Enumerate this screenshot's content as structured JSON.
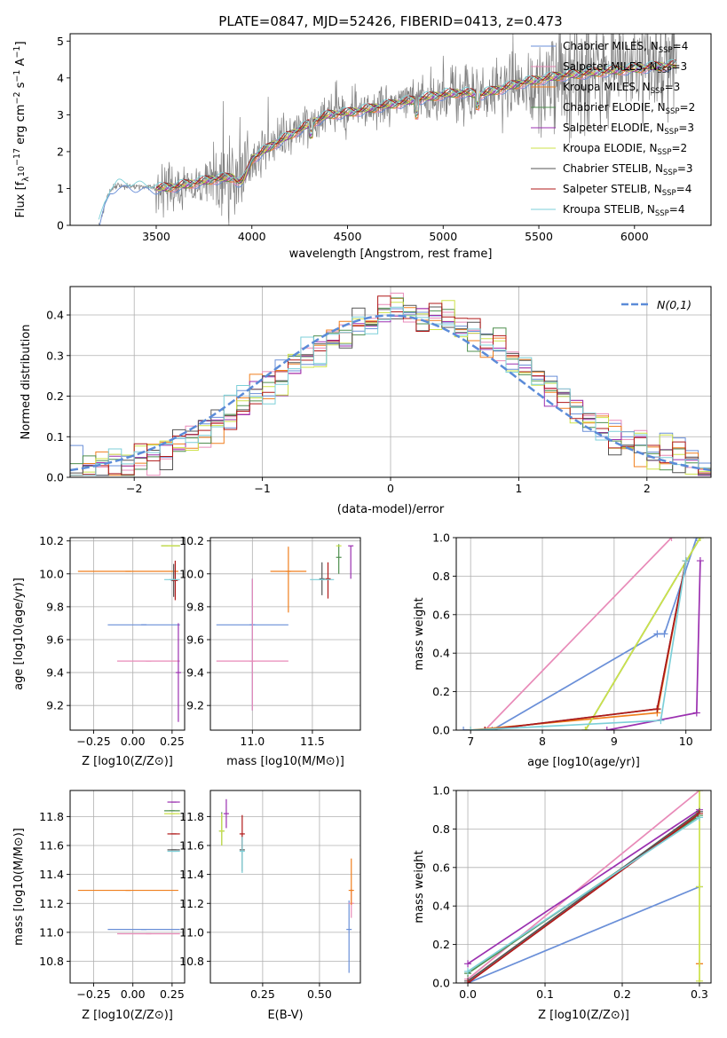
{
  "figure": {
    "title": "PLATE=0847, MJD=52426, FIBERID=0413, z=0.473"
  },
  "series_styles": [
    {
      "name": "Chabrier MILES",
      "color": "#6a8fd8"
    },
    {
      "name": "Salpeter MILES",
      "color": "#e88ab8"
    },
    {
      "name": "Kroupa MILES",
      "color": "#f07f1e"
    },
    {
      "name": "Chabrier ELODIE",
      "color": "#4f8f4f"
    },
    {
      "name": "Salpeter ELODIE",
      "color": "#9b30b0"
    },
    {
      "name": "Kroupa ELODIE",
      "color": "#cde24a"
    },
    {
      "name": "Chabrier STELIB",
      "color": "#555555"
    },
    {
      "name": "Salpeter STELIB",
      "color": "#b01818"
    },
    {
      "name": "Kroupa STELIB",
      "color": "#7ccfd8"
    }
  ],
  "chart_data": [
    {
      "id": "spectrum",
      "type": "line",
      "title": "PLATE=0847, MJD=52426, FIBERID=0413, z=0.473",
      "xlabel": "wavelength [Angstrom, rest frame]",
      "ylabel": "Flux [f_λ 10^-17 erg cm^-2 s^-1 A^-1]",
      "xlim": [
        3050,
        6400
      ],
      "ylim": [
        0,
        5.2
      ],
      "xticks": [
        3500,
        4000,
        4500,
        5000,
        5500,
        6000
      ],
      "yticks": [
        0,
        1,
        2,
        3,
        4,
        5
      ],
      "legend": {
        "placement": "top-right",
        "entries": [
          {
            "name": "Chabrier MILES",
            "nssp": "4",
            "color": "#6a8fd8"
          },
          {
            "name": "Salpeter MILES",
            "nssp": "3",
            "color": "#e88ab8"
          },
          {
            "name": "Kroupa MILES",
            "nssp": "3",
            "color": "#f07f1e"
          },
          {
            "name": "Chabrier ELODIE",
            "nssp": "2",
            "color": "#4f8f4f"
          },
          {
            "name": "Salpeter ELODIE",
            "nssp": "3",
            "color": "#9b30b0"
          },
          {
            "name": "Kroupa ELODIE",
            "nssp": "2",
            "color": "#cde24a"
          },
          {
            "name": "Chabrier STELIB",
            "nssp": "3",
            "color": "#555555"
          },
          {
            "name": "Salpeter STELIB",
            "nssp": "4",
            "color": "#b01818"
          },
          {
            "name": "Kroupa STELIB",
            "nssp": "4",
            "color": "#7ccfd8"
          }
        ]
      },
      "data_color": "#808080",
      "data_range": [
        3200,
        6220
      ],
      "model_continuum": {
        "x": [
          3200,
          3230,
          3260,
          3300,
          3400,
          3500,
          3600,
          3700,
          3800,
          3900,
          3950,
          4000,
          4100,
          4200,
          4300,
          4400,
          4500,
          4600,
          4700,
          4800,
          4900,
          5000,
          5100,
          5200,
          5300,
          5400,
          5500,
          5600,
          5700,
          5800,
          5900,
          6000,
          6100,
          6220
        ],
        "y": [
          0.0,
          0.55,
          0.95,
          1.1,
          1.05,
          1.0,
          1.05,
          1.15,
          1.25,
          1.3,
          1.45,
          1.8,
          2.15,
          2.45,
          2.75,
          3.0,
          3.05,
          3.15,
          3.25,
          3.35,
          3.45,
          3.55,
          3.6,
          3.55,
          3.7,
          3.85,
          3.95,
          4.05,
          4.1,
          4.15,
          4.2,
          4.25,
          4.3,
          4.35
        ]
      }
    },
    {
      "id": "residuals",
      "type": "histogram",
      "xlabel": "(data-model)/error",
      "ylabel": "Normed distribution",
      "xlim": [
        -2.5,
        2.5
      ],
      "ylim": [
        0,
        0.47
      ],
      "xticks": [
        -2,
        -1,
        0,
        1,
        2
      ],
      "yticks": [
        0.0,
        0.1,
        0.2,
        0.3,
        0.4
      ],
      "grid": true,
      "legend": {
        "placement": "top-right",
        "label": "N(0,1)"
      },
      "reference": {
        "name": "N(0,1)",
        "mean": 0,
        "sigma": 1,
        "color": "#5b8bd8"
      },
      "bin_width": 0.1
    },
    {
      "id": "age-vs-Z",
      "type": "errorbar",
      "xlabel": "Z [log10(Z/Z⊙)]",
      "ylabel": "age [log10(age/yr)]",
      "xlim": [
        -0.4,
        0.33
      ],
      "ylim": [
        9.05,
        10.22
      ],
      "xticks": [
        -0.25,
        0.0,
        0.25
      ],
      "yticks": [
        9.2,
        9.4,
        9.6,
        9.8,
        10.0,
        10.2
      ],
      "grid": true,
      "points": [
        {
          "series": "Chabrier MILES",
          "x": 0.07,
          "xerr": [
            0.23,
            0.23
          ],
          "y": 9.69,
          "yerr": [
            0.0,
            0.0
          ]
        },
        {
          "series": "Salpeter MILES",
          "x": 0.1,
          "xerr": [
            0.2,
            0.2
          ],
          "y": 9.47,
          "yerr": [
            0.0,
            0.0
          ]
        },
        {
          "series": "Kroupa MILES",
          "x": -0.03,
          "xerr": [
            0.32,
            0.32
          ],
          "y": 10.015,
          "yerr": [
            0.0,
            0.0
          ]
        },
        {
          "series": "Chabrier ELODIE",
          "x": 0.24,
          "xerr": [
            0.06,
            0.06
          ],
          "y": 10.17,
          "yerr": [
            0.0,
            0.0
          ]
        },
        {
          "series": "Salpeter ELODIE",
          "x": 0.29,
          "xerr": [
            0.0,
            0.0
          ],
          "y": 9.4,
          "yerr": [
            0.3,
            0.3
          ]
        },
        {
          "series": "Kroupa ELODIE",
          "x": 0.24,
          "xerr": [
            0.06,
            0.06
          ],
          "y": 10.17,
          "yerr": [
            0.0,
            0.0
          ]
        },
        {
          "series": "Chabrier STELIB",
          "x": 0.26,
          "xerr": [
            0.0,
            0.0
          ],
          "y": 9.96,
          "yerr": [
            0.1,
            0.1
          ]
        },
        {
          "series": "Salpeter STELIB",
          "x": 0.27,
          "xerr": [
            0.0,
            0.0
          ],
          "y": 9.96,
          "yerr": [
            0.12,
            0.12
          ]
        },
        {
          "series": "Kroupa STELIB",
          "x": 0.25,
          "xerr": [
            0.05,
            0.05
          ],
          "y": 9.965,
          "yerr": [
            0.0,
            0.0
          ]
        }
      ]
    },
    {
      "id": "age-vs-mass",
      "type": "errorbar",
      "xlabel": "mass [log10(M/M⊙)]",
      "ylabel": "",
      "xlim": [
        10.65,
        11.9
      ],
      "ylim": [
        9.05,
        10.22
      ],
      "xticks": [
        11.0,
        11.5
      ],
      "yticks": [
        9.2,
        9.4,
        9.6,
        9.8,
        10.0,
        10.2
      ],
      "grid": true,
      "points": [
        {
          "series": "Chabrier MILES",
          "x": 11.0,
          "xerr": [
            0.3,
            0.3
          ],
          "y": 9.69,
          "yerr": [
            0.52,
            0.28
          ]
        },
        {
          "series": "Salpeter MILES",
          "x": 11.0,
          "xerr": [
            0.3,
            0.3
          ],
          "y": 9.47,
          "yerr": [
            0.3,
            0.5
          ]
        },
        {
          "series": "Kroupa MILES",
          "x": 11.3,
          "xerr": [
            0.15,
            0.15
          ],
          "y": 10.015,
          "yerr": [
            0.25,
            0.15
          ]
        },
        {
          "series": "Chabrier ELODIE",
          "x": 11.72,
          "xerr": [
            0.0,
            0.0
          ],
          "y": 10.1,
          "yerr": [
            0.1,
            0.08
          ]
        },
        {
          "series": "Salpeter ELODIE",
          "x": 11.82,
          "xerr": [
            0.0,
            0.0
          ],
          "y": 10.17,
          "yerr": [
            0.2,
            0.0
          ]
        },
        {
          "series": "Kroupa ELODIE",
          "x": 11.72,
          "xerr": [
            0.0,
            0.0
          ],
          "y": 10.17,
          "yerr": [
            0.0,
            0.0
          ]
        },
        {
          "series": "Chabrier STELIB",
          "x": 11.58,
          "xerr": [
            0.0,
            0.0
          ],
          "y": 9.97,
          "yerr": [
            0.1,
            0.1
          ]
        },
        {
          "series": "Salpeter STELIB",
          "x": 11.63,
          "xerr": [
            0.0,
            0.0
          ],
          "y": 9.97,
          "yerr": [
            0.12,
            0.1
          ]
        },
        {
          "series": "Kroupa STELIB",
          "x": 11.58,
          "xerr": [
            0.1,
            0.1
          ],
          "y": 9.965,
          "yerr": [
            0.0,
            0.0
          ]
        }
      ]
    },
    {
      "id": "weight-vs-age",
      "type": "line",
      "xlabel": "age [log10(age/yr)]",
      "ylabel": "mass weight",
      "xlim": [
        6.8,
        10.35
      ],
      "ylim": [
        0,
        1.0
      ],
      "xticks": [
        7,
        8,
        9,
        10
      ],
      "yticks": [
        0.0,
        0.2,
        0.4,
        0.6,
        0.8,
        1.0
      ],
      "grid": true,
      "series": [
        {
          "name": "Chabrier MILES",
          "x": [
            6.9,
            7.3,
            9.6,
            9.7,
            10.15
          ],
          "y": [
            0.0,
            0.0,
            0.5,
            0.5,
            1.0
          ]
        },
        {
          "name": "Salpeter MILES",
          "x": [
            7.2,
            9.8
          ],
          "y": [
            0.0,
            1.0
          ]
        },
        {
          "name": "Kroupa MILES",
          "x": [
            7.0,
            9.6,
            10.0
          ],
          "y": [
            0.0,
            0.09,
            0.88
          ]
        },
        {
          "name": "Chabrier ELODIE",
          "x": [
            8.6,
            10.2
          ],
          "y": [
            0.0,
            1.0
          ]
        },
        {
          "name": "Salpeter ELODIE",
          "x": [
            8.9,
            10.15,
            10.2
          ],
          "y": [
            0.0,
            0.09,
            0.88
          ]
        },
        {
          "name": "Kroupa ELODIE",
          "x": [
            8.6,
            10.2
          ],
          "y": [
            0.0,
            1.0
          ]
        },
        {
          "name": "Chabrier STELIB",
          "x": [
            7.2,
            9.6,
            10.0
          ],
          "y": [
            0.0,
            0.11,
            0.88
          ]
        },
        {
          "name": "Salpeter STELIB",
          "x": [
            7.2,
            9.6,
            10.0
          ],
          "y": [
            0.0,
            0.11,
            0.88
          ]
        },
        {
          "name": "Kroupa STELIB",
          "x": [
            7.0,
            9.65,
            10.0
          ],
          "y": [
            0.0,
            0.05,
            0.88
          ]
        }
      ]
    },
    {
      "id": "mass-vs-Z",
      "type": "errorbar",
      "xlabel": "Z [log10(Z/Z⊙)]",
      "ylabel": "mass [log10(M/M⊙)]",
      "xlim": [
        -0.4,
        0.33
      ],
      "ylim": [
        10.65,
        11.98
      ],
      "xticks": [
        -0.25,
        0.0,
        0.25
      ],
      "yticks": [
        10.8,
        11.0,
        11.2,
        11.4,
        11.6,
        11.8
      ],
      "grid": true,
      "points": [
        {
          "series": "Chabrier MILES",
          "x": 0.07,
          "xerr": [
            0.23,
            0.23
          ],
          "y": 11.02,
          "yerr": [
            0.0,
            0.0
          ]
        },
        {
          "series": "Salpeter MILES",
          "x": 0.1,
          "xerr": [
            0.2,
            0.2
          ],
          "y": 10.99,
          "yerr": [
            0.0,
            0.0
          ]
        },
        {
          "series": "Kroupa MILES",
          "x": -0.03,
          "xerr": [
            0.32,
            0.32
          ],
          "y": 11.29,
          "yerr": [
            0.0,
            0.0
          ]
        },
        {
          "series": "Chabrier ELODIE",
          "x": 0.25,
          "xerr": [
            0.05,
            0.05
          ],
          "y": 11.84,
          "yerr": [
            0.0,
            0.0
          ]
        },
        {
          "series": "Salpeter ELODIE",
          "x": 0.26,
          "xerr": [
            0.04,
            0.04
          ],
          "y": 11.9,
          "yerr": [
            0.0,
            0.0
          ]
        },
        {
          "series": "Kroupa ELODIE",
          "x": 0.25,
          "xerr": [
            0.05,
            0.05
          ],
          "y": 11.82,
          "yerr": [
            0.0,
            0.0
          ]
        },
        {
          "series": "Chabrier STELIB",
          "x": 0.26,
          "xerr": [
            0.04,
            0.04
          ],
          "y": 11.57,
          "yerr": [
            0.0,
            0.0
          ]
        },
        {
          "series": "Salpeter STELIB",
          "x": 0.26,
          "xerr": [
            0.04,
            0.04
          ],
          "y": 11.68,
          "yerr": [
            0.0,
            0.0
          ]
        },
        {
          "series": "Kroupa STELIB",
          "x": 0.26,
          "xerr": [
            0.04,
            0.04
          ],
          "y": 11.56,
          "yerr": [
            0.0,
            0.0
          ]
        }
      ]
    },
    {
      "id": "mass-vs-EBV",
      "type": "errorbar",
      "xlabel": "E(B-V)",
      "ylabel": "",
      "xlim": [
        0.02,
        0.68
      ],
      "ylim": [
        10.65,
        11.98
      ],
      "xticks": [
        0.25,
        0.5
      ],
      "yticks": [
        10.8,
        11.0,
        11.2,
        11.4,
        11.6,
        11.8
      ],
      "grid": true,
      "points": [
        {
          "series": "Chabrier MILES",
          "x": 0.63,
          "xerr": [
            0.0,
            0.0
          ],
          "y": 11.02,
          "yerr": [
            0.3,
            0.2
          ]
        },
        {
          "series": "Salpeter MILES",
          "x": 0.64,
          "xerr": [
            0.0,
            0.0
          ],
          "y": 11.2,
          "yerr": [
            0.1,
            0.1
          ]
        },
        {
          "series": "Kroupa MILES",
          "x": 0.64,
          "xerr": [
            0.0,
            0.0
          ],
          "y": 11.29,
          "yerr": [
            0.1,
            0.22
          ]
        },
        {
          "series": "Chabrier ELODIE",
          "x": 0.07,
          "xerr": [
            0.0,
            0.0
          ],
          "y": 11.7,
          "yerr": [
            0.1,
            0.13
          ]
        },
        {
          "series": "Salpeter ELODIE",
          "x": 0.09,
          "xerr": [
            0.0,
            0.0
          ],
          "y": 11.82,
          "yerr": [
            0.1,
            0.1
          ]
        },
        {
          "series": "Kroupa ELODIE",
          "x": 0.07,
          "xerr": [
            0.0,
            0.0
          ],
          "y": 11.7,
          "yerr": [
            0.1,
            0.12
          ]
        },
        {
          "series": "Chabrier STELIB",
          "x": 0.16,
          "xerr": [
            0.0,
            0.0
          ],
          "y": 11.57,
          "yerr": [
            0.15,
            0.1
          ]
        },
        {
          "series": "Salpeter STELIB",
          "x": 0.16,
          "xerr": [
            0.0,
            0.0
          ],
          "y": 11.68,
          "yerr": [
            0.1,
            0.13
          ]
        },
        {
          "series": "Kroupa STELIB",
          "x": 0.16,
          "xerr": [
            0.0,
            0.0
          ],
          "y": 11.56,
          "yerr": [
            0.15,
            0.1
          ]
        }
      ]
    },
    {
      "id": "weight-vs-Z",
      "type": "line",
      "xlabel": "Z [log10(Z/Z⊙)]",
      "ylabel": "mass weight",
      "xlim": [
        -0.015,
        0.315
      ],
      "ylim": [
        0,
        1.0
      ],
      "xticks": [
        0.0,
        0.1,
        0.2,
        0.3
      ],
      "yticks": [
        0.0,
        0.2,
        0.4,
        0.6,
        0.8,
        1.0
      ],
      "grid": true,
      "series": [
        {
          "name": "Chabrier MILES",
          "x": [
            0.0,
            0.3
          ],
          "y": [
            0.0,
            0.5
          ]
        },
        {
          "name": "Salpeter MILES",
          "x": [
            0.0,
            0.3
          ],
          "y": [
            0.02,
            1.0
          ]
        },
        {
          "name": "Kroupa MILES",
          "x": [
            0.3,
            0.3
          ],
          "y": [
            0.1,
            0.1
          ]
        },
        {
          "name": "Chabrier ELODIE",
          "x": [
            0.0,
            0.3
          ],
          "y": [
            0.05,
            0.87
          ]
        },
        {
          "name": "Salpeter ELODIE",
          "x": [
            0.0,
            0.3
          ],
          "y": [
            0.1,
            0.9
          ]
        },
        {
          "name": "Kroupa ELODIE",
          "x": [
            0.3,
            0.3,
            0.3
          ],
          "y": [
            0.01,
            0.5,
            1.0
          ]
        },
        {
          "name": "Chabrier STELIB",
          "x": [
            0.0,
            0.3
          ],
          "y": [
            0.01,
            0.89
          ]
        },
        {
          "name": "Salpeter STELIB",
          "x": [
            0.0,
            0.3
          ],
          "y": [
            0.0,
            0.88
          ]
        },
        {
          "name": "Kroupa STELIB",
          "x": [
            0.0,
            0.3
          ],
          "y": [
            0.06,
            0.86
          ]
        }
      ]
    }
  ]
}
